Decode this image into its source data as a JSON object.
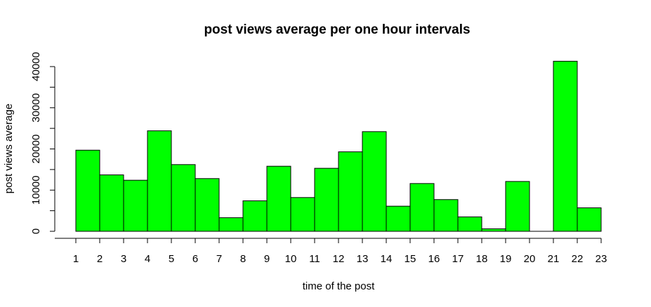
{
  "chart_data": {
    "type": "bar",
    "title": "post views average per one hour intervals",
    "xlabel": "time of the post",
    "ylabel": "post views average",
    "categories": [
      1,
      2,
      3,
      4,
      5,
      6,
      7,
      8,
      9,
      10,
      11,
      12,
      13,
      14,
      15,
      16,
      17,
      18,
      19,
      20,
      21,
      22
    ],
    "x_ticks": [
      1,
      2,
      3,
      4,
      5,
      6,
      7,
      8,
      9,
      10,
      11,
      12,
      13,
      14,
      15,
      16,
      17,
      18,
      19,
      20,
      21,
      22,
      23
    ],
    "values": [
      19700,
      13700,
      12400,
      24400,
      16200,
      12800,
      3300,
      7400,
      15800,
      8200,
      15300,
      19300,
      24200,
      6100,
      11600,
      7700,
      3500,
      600,
      12100,
      0,
      41300,
      5700
    ],
    "y_ticks": [
      0,
      10000,
      20000,
      30000,
      40000
    ],
    "y_minor_ticks": [
      5000,
      15000,
      25000,
      35000
    ],
    "ylim": [
      0,
      40000
    ],
    "xlim": [
      1,
      23
    ],
    "bar_color": "#00ff00",
    "grid": false
  }
}
